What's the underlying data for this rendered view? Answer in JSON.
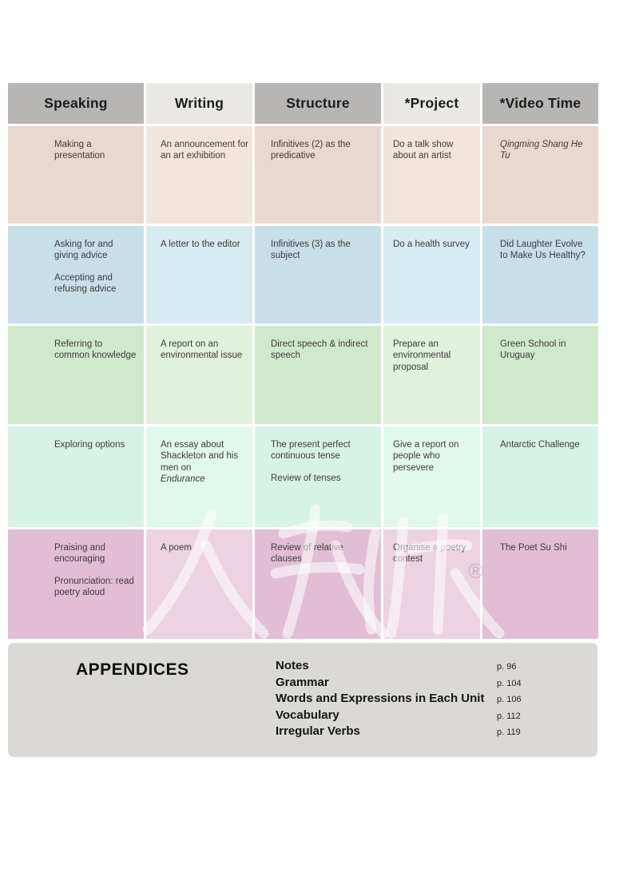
{
  "table": {
    "header_colors": {
      "dark": "#b8b6b4",
      "light": "#eae8e5"
    },
    "headers": [
      {
        "label": "Speaking"
      },
      {
        "label": "Writing"
      },
      {
        "label": "Structure"
      },
      {
        "label": "*Project"
      },
      {
        "label": "*Video Time"
      }
    ],
    "rows": [
      {
        "name": "unit-row-1",
        "colors": {
          "dark": "#e9d8cf",
          "light": "#f1e5de"
        },
        "cells": [
          {
            "paras": [
              {
                "text": "Making a presentation"
              }
            ]
          },
          {
            "paras": [
              {
                "text": "An announcement for an art exhibition"
              }
            ]
          },
          {
            "paras": [
              {
                "text": "Infinitives (2) as the predicative"
              }
            ]
          },
          {
            "paras": [
              {
                "text": "Do a talk show about an artist"
              }
            ]
          },
          {
            "paras": [
              {
                "text": "Qingming Shang He Tu",
                "italic": true
              }
            ]
          }
        ]
      },
      {
        "name": "unit-row-2",
        "colors": {
          "dark": "#c8dfe9",
          "light": "#d7ebf2"
        },
        "cells": [
          {
            "paras": [
              {
                "text": "Asking for and giving advice"
              },
              {
                "text": "Accepting and refusing advice",
                "space_before": true
              }
            ]
          },
          {
            "paras": [
              {
                "text": "A letter to the editor"
              }
            ]
          },
          {
            "paras": [
              {
                "text": "Infinitives (3) as the subject"
              }
            ]
          },
          {
            "paras": [
              {
                "text": "Do a health survey"
              }
            ]
          },
          {
            "paras": [
              {
                "text": "Did Laughter Evolve to Make Us Healthy?"
              }
            ]
          }
        ]
      },
      {
        "name": "unit-row-3",
        "colors": {
          "dark": "#d0e9cd",
          "light": "#e0f2dc"
        },
        "cells": [
          {
            "paras": [
              {
                "text": "Referring to common knowledge"
              }
            ]
          },
          {
            "paras": [
              {
                "text": "A report on an environmental issue"
              }
            ]
          },
          {
            "paras": [
              {
                "text": "Direct speech & indirect speech"
              }
            ]
          },
          {
            "paras": [
              {
                "text": "Prepare an environmental proposal"
              }
            ]
          },
          {
            "paras": [
              {
                "text": "Green School in Uruguay"
              }
            ]
          }
        ]
      },
      {
        "name": "unit-row-4",
        "colors": {
          "dark": "#d7f3e5",
          "light": "#e1f8ed"
        },
        "cells": [
          {
            "paras": [
              {
                "text": "Exploring options"
              }
            ]
          },
          {
            "paras": [
              {
                "text": "An essay about Shackleton and his men on"
              },
              {
                "text": "Endurance",
                "italic": true
              }
            ]
          },
          {
            "paras": [
              {
                "text": "The present perfect continuous tense"
              },
              {
                "text": "Review of tenses",
                "space_before": true
              }
            ]
          },
          {
            "paras": [
              {
                "text": "Give a report on people who persevere"
              }
            ]
          },
          {
            "paras": [
              {
                "text": "Antarctic Challenge"
              }
            ]
          }
        ]
      },
      {
        "name": "unit-row-5",
        "colors": {
          "dark": "#e2bed4",
          "light": "#edd2e2"
        },
        "cells": [
          {
            "paras": [
              {
                "text": "Praising and encouraging"
              },
              {
                "text": "Pronunciation: read poetry aloud",
                "space_before": true
              }
            ]
          },
          {
            "paras": [
              {
                "text": "A poem"
              }
            ]
          },
          {
            "paras": [
              {
                "text": "Review of relative clauses"
              }
            ]
          },
          {
            "paras": [
              {
                "text": "Organise a poetry contest"
              }
            ]
          },
          {
            "paras": [
              {
                "text": "The Poet Su Shi"
              }
            ]
          }
        ]
      }
    ]
  },
  "appendices": {
    "title": "APPENDICES",
    "items": [
      {
        "label": "Notes",
        "page": "p. 96"
      },
      {
        "label": "Grammar",
        "page": "p. 104"
      },
      {
        "label": "Words and Expressions in Each Unit",
        "page": "p. 106"
      },
      {
        "label": "Vocabulary",
        "page": "p. 112"
      },
      {
        "label": "Irregular Verbs",
        "page": "p. 119"
      }
    ]
  },
  "watermark": {
    "registered_mark": "®"
  }
}
